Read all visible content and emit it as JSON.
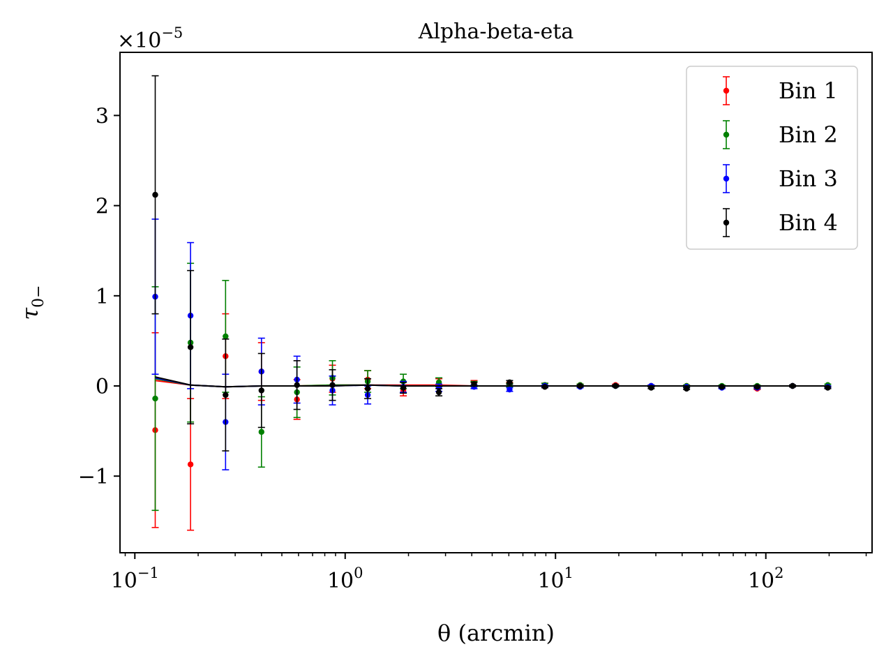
{
  "chart_data": {
    "type": "scatter",
    "title": "Alpha-beta-eta",
    "xlabel": "θ (arcmin)",
    "ylabel": "τ",
    "ylabel_subscript": "0−",
    "x_scale": "log",
    "xlim": [
      0.085,
      320
    ],
    "ylim": [
      -1.85,
      3.7
    ],
    "y_multiplier": "×10",
    "y_multiplier_exponent": "−5",
    "x_ticks": [
      {
        "value": 0.1,
        "base": "10",
        "exp": "−1"
      },
      {
        "value": 1,
        "base": "10",
        "exp": "0"
      },
      {
        "value": 10,
        "base": "10",
        "exp": "1"
      },
      {
        "value": 100,
        "base": "10",
        "exp": "2"
      }
    ],
    "y_ticks": [
      {
        "value": -1,
        "label": "−1"
      },
      {
        "value": 0,
        "label": "0"
      },
      {
        "value": 1,
        "label": "1"
      },
      {
        "value": 2,
        "label": "2"
      },
      {
        "value": 3,
        "label": "3"
      }
    ],
    "grid": false,
    "legend_position": "top-right",
    "x": [
      0.125,
      0.184,
      0.27,
      0.4,
      0.59,
      0.87,
      1.28,
      1.89,
      2.79,
      4.1,
      6.05,
      8.9,
      13.1,
      19.3,
      28.5,
      42.0,
      61.8,
      91.0,
      134.0,
      197.0
    ],
    "series": [
      {
        "name": "Bin 1",
        "color": "#ff0000",
        "y": [
          -0.49,
          -0.87,
          0.33,
          0.16,
          -0.15,
          0.08,
          0.07,
          -0.05,
          0.04,
          0.03,
          0.02,
          0.01,
          0.01,
          0.01,
          0.0,
          0.0,
          -0.01,
          -0.03,
          0.0,
          -0.01
        ],
        "err": [
          1.08,
          0.73,
          0.47,
          0.32,
          0.22,
          0.15,
          0.1,
          0.06,
          0.04,
          0.03,
          0.02,
          0.02,
          0.01,
          0.01,
          0.01,
          0.01,
          0.01,
          0.01,
          0.01,
          0.01
        ],
        "model": [
          0.06,
          0.01,
          -0.01,
          0.0,
          0.0,
          0.01,
          0.01,
          0.01,
          0.01,
          0.0,
          0.0,
          0.0,
          0.0,
          0.0,
          0.0,
          0.0,
          0.0,
          0.0,
          0.0,
          0.0
        ]
      },
      {
        "name": "Bin 2",
        "color": "#008000",
        "y": [
          -0.14,
          0.48,
          0.55,
          -0.51,
          -0.07,
          0.09,
          0.05,
          0.05,
          0.04,
          0.02,
          0.01,
          0.01,
          0.01,
          0.0,
          0.0,
          0.0,
          0.0,
          0.0,
          0.0,
          0.01
        ],
        "err": [
          1.24,
          0.88,
          0.62,
          0.39,
          0.28,
          0.19,
          0.12,
          0.08,
          0.05,
          0.03,
          0.02,
          0.02,
          0.01,
          0.01,
          0.01,
          0.01,
          0.01,
          0.01,
          0.01,
          0.01
        ],
        "model": [
          0.08,
          0.01,
          -0.01,
          0.0,
          0.0,
          0.01,
          0.01,
          0.0,
          0.0,
          0.0,
          0.0,
          0.0,
          0.0,
          0.0,
          0.0,
          0.0,
          0.0,
          0.0,
          0.0,
          0.0
        ]
      },
      {
        "name": "Bin 3",
        "color": "#0000ff",
        "y": [
          0.99,
          0.78,
          -0.4,
          0.16,
          0.07,
          -0.05,
          -0.1,
          -0.01,
          -0.02,
          -0.01,
          -0.04,
          0.0,
          -0.01,
          0.0,
          0.0,
          -0.01,
          -0.02,
          -0.02,
          0.0,
          -0.01
        ],
        "err": [
          0.86,
          0.81,
          0.53,
          0.37,
          0.26,
          0.16,
          0.1,
          0.06,
          0.04,
          0.02,
          0.02,
          0.01,
          0.01,
          0.01,
          0.01,
          0.01,
          0.01,
          0.01,
          0.01,
          0.01
        ],
        "model": [
          0.09,
          0.01,
          -0.01,
          0.0,
          0.0,
          0.0,
          0.01,
          0.0,
          0.0,
          0.0,
          0.0,
          0.0,
          0.0,
          0.0,
          0.0,
          0.0,
          0.0,
          0.0,
          0.0,
          0.0
        ]
      },
      {
        "name": "Bin 4",
        "color": "#000000",
        "y": [
          2.12,
          0.43,
          -0.1,
          -0.05,
          0.01,
          0.01,
          -0.03,
          -0.02,
          -0.07,
          0.02,
          0.04,
          -0.01,
          0.0,
          0.0,
          -0.02,
          -0.03,
          -0.01,
          -0.01,
          0.0,
          -0.02
        ],
        "err": [
          1.32,
          0.85,
          0.62,
          0.41,
          0.27,
          0.17,
          0.11,
          0.06,
          0.04,
          0.02,
          0.02,
          0.01,
          0.01,
          0.01,
          0.01,
          0.01,
          0.01,
          0.01,
          0.01,
          0.01
        ],
        "model": [
          0.1,
          0.01,
          -0.01,
          0.0,
          0.0,
          0.0,
          0.01,
          0.0,
          0.0,
          0.0,
          0.0,
          0.0,
          0.0,
          0.0,
          0.0,
          0.0,
          0.0,
          0.0,
          0.0,
          0.0
        ]
      }
    ]
  }
}
